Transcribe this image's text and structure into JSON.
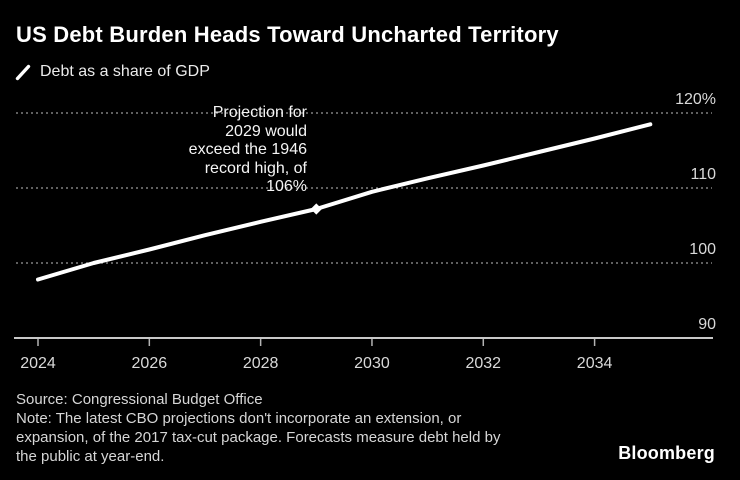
{
  "header": {
    "title": "US Debt Burden Heads Toward Uncharted Territory",
    "legend": {
      "label": "Debt as a share of GDP",
      "marker": "white-slash-line"
    }
  },
  "annotation": {
    "text": "Projection for\n2029 would\nexceed the 1946\nrecord high, of\n106%"
  },
  "footer": {
    "source": "Source: Congressional Budget Office",
    "note": "Note: The latest CBO projections don't incorporate an extension, or\nexpansion, of the 2017 tax-cut package. Forecasts measure debt held by\nthe public at year-end.",
    "brand": "Bloomberg"
  },
  "colors": {
    "background": "#000000",
    "line": "#ffffff",
    "grid": "#999999",
    "axis": "#c8c8c8",
    "tick": "#b3b3b3",
    "axis_text": "#d9d9d9",
    "marker": "#ffffff"
  },
  "chart_data": {
    "type": "line",
    "title": "US Debt Burden Heads Toward Uncharted Territory",
    "series": [
      {
        "name": "Debt as a share of GDP",
        "x": [
          2024,
          2025,
          2026,
          2027,
          2028,
          2029,
          2030,
          2031,
          2032,
          2033,
          2034,
          2035
        ],
        "values": [
          97.8,
          100.0,
          101.8,
          103.7,
          105.5,
          107.2,
          109.5,
          111.3,
          113.0,
          114.8,
          116.6,
          118.5
        ]
      }
    ],
    "unit": "%",
    "ylim": [
      90,
      120
    ],
    "xlim": [
      2024,
      2035.2
    ],
    "y_ticks": [
      {
        "value": 120,
        "label": "120%"
      },
      {
        "value": 110,
        "label": "110"
      },
      {
        "value": 100,
        "label": "100"
      },
      {
        "value": 90,
        "label": "90"
      }
    ],
    "x_ticks": [
      {
        "value": 2024,
        "label": "2024"
      },
      {
        "value": 2026,
        "label": "2026"
      },
      {
        "value": 2028,
        "label": "2028"
      },
      {
        "value": 2030,
        "label": "2030"
      },
      {
        "value": 2032,
        "label": "2032"
      },
      {
        "value": 2034,
        "label": "2034"
      }
    ],
    "marker_point": {
      "x": 2029,
      "y": 107.2
    },
    "grid": "horizontal-dotted",
    "legend_position": "top-left",
    "annotation": "Projection for 2029 would exceed the 1946 record high, of 106%"
  }
}
